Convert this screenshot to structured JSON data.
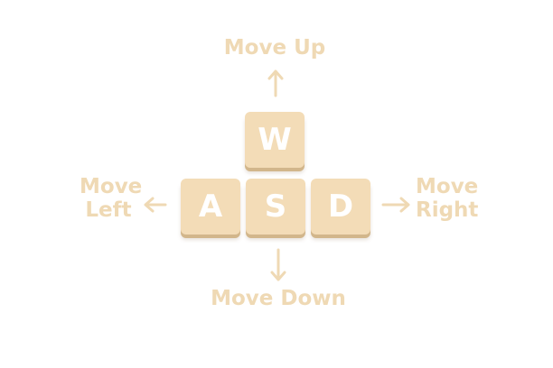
{
  "keys": {
    "w": "W",
    "a": "A",
    "s": "S",
    "d": "D"
  },
  "labels": {
    "up": "Move Up",
    "down": "Move Down",
    "left_line1": "Move",
    "left_line2": "Left",
    "right_line1": "Move",
    "right_line2": "Right"
  },
  "icons": {
    "up": "arrow-up-icon",
    "down": "arrow-down-icon",
    "left": "arrow-left-icon",
    "right": "arrow-right-icon"
  },
  "colors": {
    "key_face": "#f3dcb7",
    "key_shadow": "#d2b68b",
    "key_text": "#ffffff",
    "label_text": "#efd9b4",
    "background": "#ffffff"
  }
}
